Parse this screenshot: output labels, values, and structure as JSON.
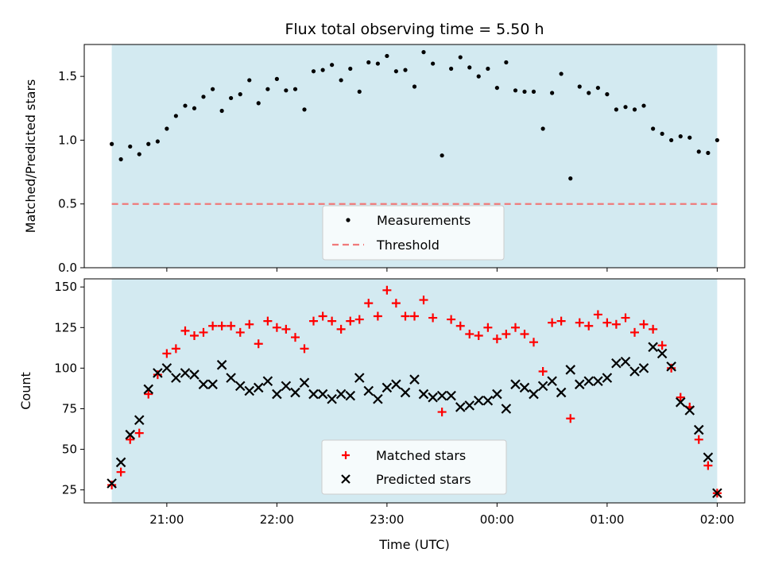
{
  "chart_data": [
    {
      "type": "scatter",
      "title": "Flux total observing time = 5.50 h",
      "ylabel": "Matched/Predicted stars",
      "xlabel": "",
      "xlim_hours": [
        20.25,
        26.25
      ],
      "ylim": [
        0,
        1.75
      ],
      "yticks": [
        0.0,
        0.5,
        1.0,
        1.5
      ],
      "ytick_labels": [
        "0.0",
        "0.5",
        "1.0",
        "1.5"
      ],
      "shaded_region_hours": [
        20.5,
        26.0
      ],
      "shade_color": "#d3eaf1",
      "threshold": {
        "name": "Threshold",
        "value": 0.5,
        "color": "#f07a7a"
      },
      "legend": {
        "placement": "lower-center",
        "entries": [
          "Measurements",
          "Threshold"
        ]
      },
      "series": [
        {
          "name": "Measurements",
          "marker": "dot",
          "color": "#000000",
          "x": [
            20.5,
            20.583,
            20.667,
            20.75,
            20.833,
            20.917,
            21.0,
            21.083,
            21.167,
            21.25,
            21.333,
            21.417,
            21.5,
            21.583,
            21.667,
            21.75,
            21.833,
            21.917,
            22.0,
            22.083,
            22.167,
            22.25,
            22.333,
            22.417,
            22.5,
            22.583,
            22.667,
            22.75,
            22.833,
            22.917,
            23.0,
            23.083,
            23.167,
            23.25,
            23.333,
            23.417,
            23.5,
            23.583,
            23.667,
            23.75,
            23.833,
            23.917,
            24.0,
            24.083,
            24.167,
            24.25,
            24.333,
            24.417,
            24.5,
            24.583,
            24.667,
            24.75,
            24.833,
            24.917,
            25.0,
            25.083,
            25.167,
            25.25,
            25.333,
            25.417,
            25.5,
            25.583,
            25.667,
            25.75,
            25.833,
            25.917,
            26.0
          ],
          "y": [
            0.97,
            0.85,
            0.95,
            0.89,
            0.97,
            0.99,
            1.09,
            1.19,
            1.27,
            1.25,
            1.34,
            1.4,
            1.23,
            1.33,
            1.36,
            1.47,
            1.29,
            1.4,
            1.48,
            1.39,
            1.4,
            1.24,
            1.54,
            1.55,
            1.59,
            1.47,
            1.56,
            1.38,
            1.61,
            1.6,
            1.66,
            1.54,
            1.55,
            1.42,
            1.69,
            1.6,
            0.88,
            1.56,
            1.65,
            1.57,
            1.5,
            1.56,
            1.41,
            1.61,
            1.39,
            1.38,
            1.38,
            1.09,
            1.37,
            1.52,
            0.7,
            1.42,
            1.37,
            1.41,
            1.36,
            1.24,
            1.26,
            1.24,
            1.27,
            1.09,
            1.05,
            1.0,
            1.03,
            1.02,
            0.91,
            0.9,
            1.0
          ]
        }
      ]
    },
    {
      "type": "scatter",
      "title": "",
      "ylabel": "Count",
      "xlabel": "Time (UTC)",
      "xlim_hours": [
        20.25,
        26.25
      ],
      "ylim": [
        17,
        155
      ],
      "yticks": [
        25,
        50,
        75,
        100,
        125,
        150
      ],
      "ytick_labels": [
        "25",
        "50",
        "75",
        "100",
        "125",
        "150"
      ],
      "xticks_hours": [
        21,
        22,
        23,
        24,
        25,
        26
      ],
      "xtick_labels": [
        "21:00",
        "22:00",
        "23:00",
        "00:00",
        "01:00",
        "02:00"
      ],
      "shaded_region_hours": [
        20.5,
        26.0
      ],
      "shade_color": "#d3eaf1",
      "legend": {
        "placement": "lower-center",
        "entries": [
          "Matched stars",
          "Predicted stars"
        ]
      },
      "series": [
        {
          "name": "Matched stars",
          "marker": "plus",
          "color": "#ff0000",
          "x": [
            20.5,
            20.583,
            20.667,
            20.75,
            20.833,
            20.917,
            21.0,
            21.083,
            21.167,
            21.25,
            21.333,
            21.417,
            21.5,
            21.583,
            21.667,
            21.75,
            21.833,
            21.917,
            22.0,
            22.083,
            22.167,
            22.25,
            22.333,
            22.417,
            22.5,
            22.583,
            22.667,
            22.75,
            22.833,
            22.917,
            23.0,
            23.083,
            23.167,
            23.25,
            23.333,
            23.417,
            23.5,
            23.583,
            23.667,
            23.75,
            23.833,
            23.917,
            24.0,
            24.083,
            24.167,
            24.25,
            24.333,
            24.417,
            24.5,
            24.583,
            24.667,
            24.75,
            24.833,
            24.917,
            25.0,
            25.083,
            25.167,
            25.25,
            25.333,
            25.417,
            25.5,
            25.583,
            25.667,
            25.75,
            25.833,
            25.917,
            26.0
          ],
          "y": [
            28,
            36,
            56,
            60,
            84,
            96,
            109,
            112,
            123,
            120,
            122,
            126,
            126,
            126,
            122,
            127,
            115,
            129,
            125,
            124,
            119,
            112,
            129,
            132,
            129,
            124,
            129,
            130,
            140,
            132,
            148,
            140,
            132,
            132,
            142,
            131,
            73,
            130,
            126,
            121,
            120,
            125,
            118,
            121,
            125,
            121,
            116,
            98,
            128,
            129,
            69,
            128,
            126,
            133,
            128,
            127,
            131,
            122,
            127,
            124,
            114,
            100,
            82,
            76,
            56,
            40,
            23
          ]
        },
        {
          "name": "Predicted stars",
          "marker": "x",
          "color": "#000000",
          "x": [
            20.5,
            20.583,
            20.667,
            20.75,
            20.833,
            20.917,
            21.0,
            21.083,
            21.167,
            21.25,
            21.333,
            21.417,
            21.5,
            21.583,
            21.667,
            21.75,
            21.833,
            21.917,
            22.0,
            22.083,
            22.167,
            22.25,
            22.333,
            22.417,
            22.5,
            22.583,
            22.667,
            22.75,
            22.833,
            22.917,
            23.0,
            23.083,
            23.167,
            23.25,
            23.333,
            23.417,
            23.5,
            23.583,
            23.667,
            23.75,
            23.833,
            23.917,
            24.0,
            24.083,
            24.167,
            24.25,
            24.333,
            24.417,
            24.5,
            24.583,
            24.667,
            24.75,
            24.833,
            24.917,
            25.0,
            25.083,
            25.167,
            25.25,
            25.333,
            25.417,
            25.5,
            25.583,
            25.667,
            25.75,
            25.833,
            25.917,
            26.0
          ],
          "y": [
            29,
            42,
            59,
            68,
            87,
            97,
            100,
            94,
            97,
            96,
            90,
            90,
            102,
            94,
            89,
            86,
            88,
            92,
            84,
            89,
            85,
            91,
            84,
            84,
            81,
            84,
            83,
            94,
            86,
            81,
            88,
            90,
            85,
            93,
            84,
            82,
            83,
            83,
            76,
            77,
            80,
            80,
            84,
            75,
            90,
            88,
            84,
            89,
            92,
            85,
            99,
            90,
            92,
            92,
            94,
            103,
            104,
            98,
            100,
            113,
            109,
            101,
            79,
            74,
            62,
            45,
            23
          ]
        }
      ]
    }
  ]
}
